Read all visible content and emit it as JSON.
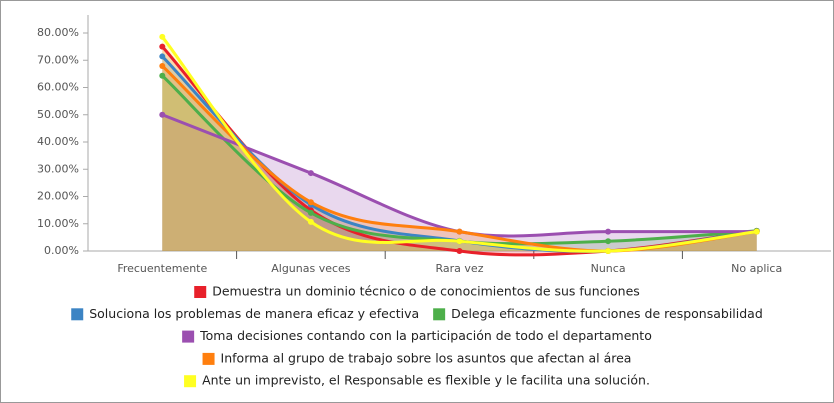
{
  "chart_data": {
    "type": "area",
    "categories": [
      "Frecuentemente",
      "Algunas veces",
      "Rara vez",
      "Nunca",
      "No aplica"
    ],
    "ylim": [
      0,
      80
    ],
    "yticks": [
      {
        "value": 0,
        "label": "0.00%"
      },
      {
        "value": 10,
        "label": "10.00%"
      },
      {
        "value": 20,
        "label": "20.00%"
      },
      {
        "value": 30,
        "label": "30.00%"
      },
      {
        "value": 40,
        "label": "40.00%"
      },
      {
        "value": 50,
        "label": "50.00%"
      },
      {
        "value": 60,
        "label": "60.00%"
      },
      {
        "value": 70,
        "label": "70.00%"
      },
      {
        "value": 80,
        "label": "80.00%"
      }
    ],
    "series": [
      {
        "name": "Demuestra un dominio técnico o de conocimientos de sus funciones",
        "color": "#e8202a",
        "values": [
          75.0,
          15.0,
          0,
          0,
          7.4
        ]
      },
      {
        "name": "Soluciona los problemas de manera eficaz y efectiva",
        "color": "#3c84c4",
        "values": [
          71.4,
          17.0,
          3.7,
          0,
          7.4
        ]
      },
      {
        "name": "Delega eficazmente funciones de responsabilidad",
        "color": "#4daf4a",
        "values": [
          64.3,
          14.0,
          3.6,
          3.6,
          7.4
        ]
      },
      {
        "name": "Toma decisiones contando con la participación de todo el departamento",
        "color": "#9b4fb0",
        "values": [
          50.0,
          28.6,
          7.1,
          7.1,
          7.1
        ]
      },
      {
        "name": "Informa al grupo de trabajo sobre los asuntos que afectan al área",
        "color": "#ff7f0e",
        "values": [
          67.9,
          17.9,
          7.1,
          0,
          7.1
        ]
      },
      {
        "name": "Ante un imprevisto, el Responsable es flexible y le facilita una solución.",
        "color": "#ffff22",
        "values": [
          78.6,
          10.7,
          3.6,
          0,
          7.1
        ]
      }
    ],
    "grid": false
  }
}
